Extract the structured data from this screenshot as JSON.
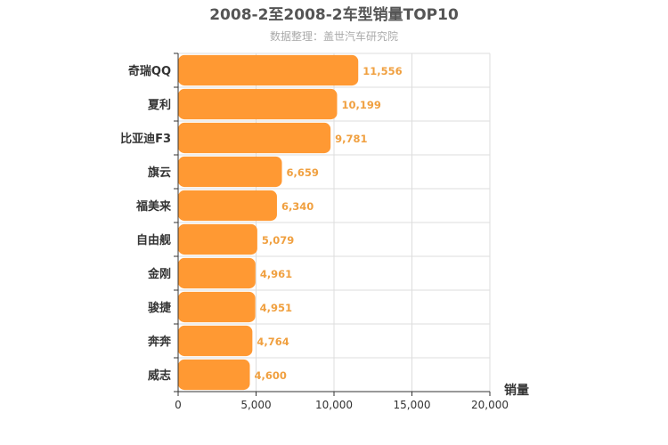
{
  "chart_data": {
    "type": "bar",
    "orientation": "horizontal",
    "title": "2008-2至2008-2车型销量TOP10",
    "subtitle": "数据整理：盖世汽车研究院",
    "xlabel": "销量",
    "ylabel": "",
    "xlim": [
      0,
      20000
    ],
    "xticks": [
      0,
      5000,
      10000,
      15000,
      20000
    ],
    "xtick_labels": [
      "0",
      "5,000",
      "10,000",
      "15,000",
      "20,000"
    ],
    "grid": true,
    "legend": "none",
    "bar_color": "#ff9933",
    "value_label_color": "#f0a040",
    "categories": [
      "奇瑞QQ",
      "夏利",
      "比亚迪F3",
      "旗云",
      "福美来",
      "自由舰",
      "金刚",
      "骏捷",
      "奔奔",
      "威志"
    ],
    "values": [
      11556,
      10199,
      9781,
      6659,
      6340,
      5079,
      4961,
      4951,
      4764,
      4600
    ],
    "value_labels": [
      "11,556",
      "10,199",
      "9,781",
      "6,659",
      "6,340",
      "5,079",
      "4,961",
      "4,951",
      "4,764",
      "4,600"
    ]
  }
}
